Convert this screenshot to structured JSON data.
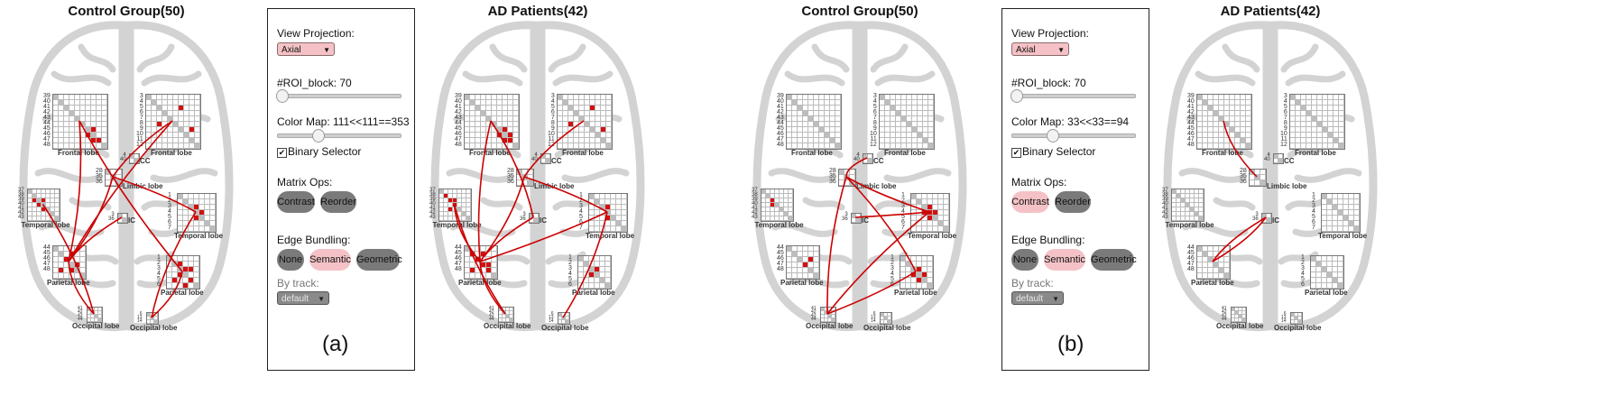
{
  "colors": {
    "edge": "#cc0000",
    "brain": "#d3d3d3",
    "accent": "#f4c2c6",
    "button_off": "#7a7a7a"
  },
  "figures": [
    {
      "caption": "(a)",
      "left_view": {
        "title": "Control Group(50)"
      },
      "right_view": {
        "title": "AD Patients(42)"
      },
      "panel": {
        "view_projection_label": "View Projection:",
        "view_projection_value": "Axial",
        "roi_block_label": "#ROI_block: 70",
        "color_map_label": "Color Map: 111<<111==353",
        "binary_selector_label": "Binary Selector",
        "binary_selector_checked": true,
        "matrix_ops_label": "Matrix Ops:",
        "contrast_label": "Contrast",
        "reorder_label": "Reorder",
        "edge_bundling_label": "Edge Bundling:",
        "none_label": "None",
        "semantic_label": "Semantic",
        "geometric_label": "Geometric",
        "by_track_label": "By track:",
        "by_track_value": "default",
        "active_matrix_op": "none",
        "active_edge_bundling": "semantic"
      }
    },
    {
      "caption": "(b)",
      "left_view": {
        "title": "Control Group(50)"
      },
      "right_view": {
        "title": "AD Patients(42)"
      },
      "panel": {
        "view_projection_label": "View Projection:",
        "view_projection_value": "Axial",
        "roi_block_label": "#ROI_block: 70",
        "color_map_label": "Color Map: 33<<33==94",
        "binary_selector_label": "Binary Selector",
        "binary_selector_checked": true,
        "matrix_ops_label": "Matrix Ops:",
        "contrast_label": "Contrast",
        "reorder_label": "Reorder",
        "edge_bundling_label": "Edge Bundling:",
        "none_label": "None",
        "semantic_label": "Semantic",
        "geometric_label": "Geometric",
        "by_track_label": "By track:",
        "by_track_value": "default",
        "active_matrix_op": "contrast",
        "active_edge_bundling": "semantic"
      }
    }
  ],
  "region_labels": {
    "frontal_left": "Frontal lobe",
    "frontal_right": "Frontal lobe",
    "cc": "CC",
    "limbic": "Limbic lobe",
    "temporal_left": "Temporal lobe",
    "temporal_right": "Temporal lobe",
    "ic": "IC",
    "parietal_left": "Parietal lobe",
    "parietal_right": "Parietal lobe",
    "occipital_left": "Occipital lobe",
    "occipital_right": "Occipital lobe"
  },
  "tick_labels": {
    "frontal_left": [
      "39",
      "40",
      "41",
      "42",
      "43",
      "44",
      "45",
      "46",
      "47",
      "48"
    ],
    "frontal_right": [
      "3",
      "4",
      "5",
      "6",
      "7",
      "8",
      "9",
      "10",
      "11",
      "12"
    ],
    "cc": [
      "4",
      "40"
    ],
    "limbic": [
      "28",
      "35",
      "36"
    ],
    "temporal_left": [
      "37",
      "38",
      "39",
      "40",
      "41",
      "42",
      "43"
    ],
    "temporal_right": [
      "1",
      "2",
      "3",
      "4",
      "5",
      "6",
      "7"
    ],
    "ic": [
      "3",
      "36"
    ],
    "parietal_left": [
      "44",
      "45",
      "46",
      "47",
      "48"
    ],
    "parietal_right": [
      "1",
      "2",
      "3",
      "4",
      "5",
      "6"
    ],
    "occipital_left": [
      "41",
      "42",
      "43",
      "44"
    ],
    "occipital_right": [
      "6",
      "13",
      "14"
    ]
  }
}
